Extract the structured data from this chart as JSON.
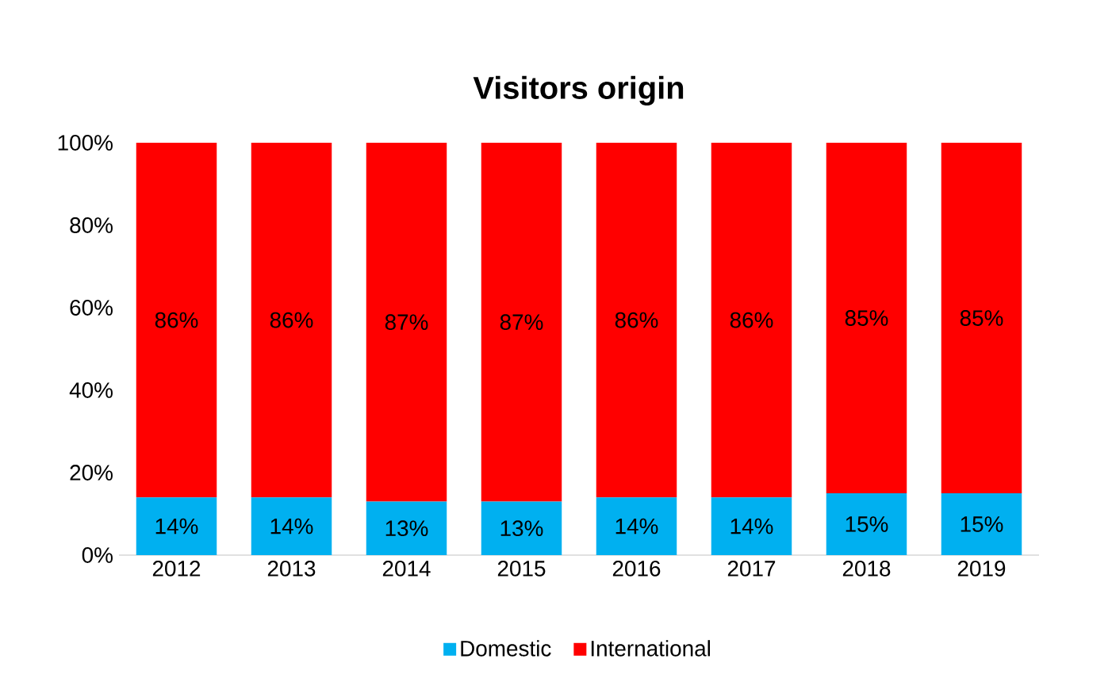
{
  "chart_data": {
    "type": "bar",
    "title": "Visitors origin",
    "stacked": true,
    "categories": [
      "2012",
      "2013",
      "2014",
      "2015",
      "2016",
      "2017",
      "2018",
      "2019"
    ],
    "series": [
      {
        "name": "Domestic",
        "color": "#00b0f0",
        "values": [
          14,
          14,
          13,
          13,
          14,
          14,
          15,
          15
        ],
        "value_labels": [
          "14%",
          "14%",
          "13%",
          "13%",
          "14%",
          "14%",
          "15%",
          "15%"
        ]
      },
      {
        "name": "International",
        "color": "#ff0000",
        "values": [
          86,
          86,
          87,
          87,
          86,
          86,
          85,
          85
        ],
        "value_labels": [
          "86%",
          "86%",
          "87%",
          "87%",
          "86%",
          "86%",
          "85%",
          "85%"
        ]
      }
    ],
    "ylim": [
      0,
      100
    ],
    "yticks": [
      {
        "value": 0,
        "label": "0%"
      },
      {
        "value": 20,
        "label": "20%"
      },
      {
        "value": 40,
        "label": "40%"
      },
      {
        "value": 60,
        "label": "60%"
      },
      {
        "value": 80,
        "label": "80%"
      },
      {
        "value": 100,
        "label": "100%"
      }
    ],
    "legend": "bottom"
  }
}
